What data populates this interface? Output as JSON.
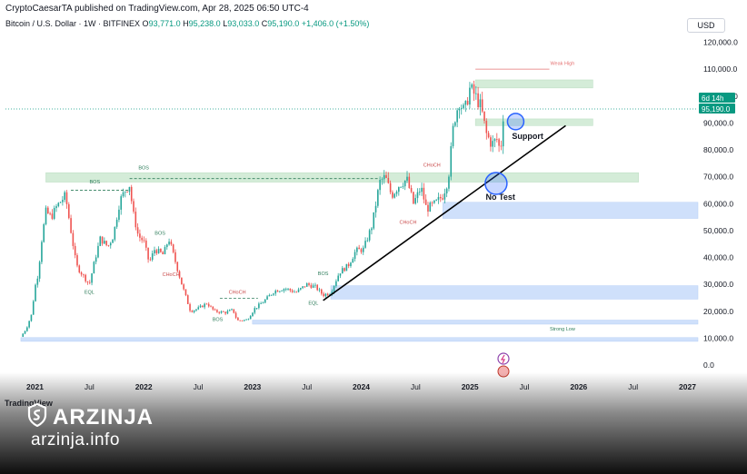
{
  "header": {
    "attribution": "CryptoCaesarTA published on TradingView.com, Apr 28, 2025 06:50 UTC-4",
    "symbol_line": "Bitcoin / U.S. Dollar · 1W · BITFINEX",
    "open_label": "O",
    "open_value": "93,771.0",
    "high_label": "H",
    "high_value": "95,238.0",
    "low_label": "L",
    "low_value": "93,033.0",
    "close_label": "C",
    "close_value": "95,190.0",
    "change": "+1,406.0 (+1.50%)",
    "currency_button": "USD"
  },
  "footer": {
    "tv_logo": "TradingView",
    "brand": "ARZINJA",
    "site": "arzinja.info"
  },
  "colors": {
    "up": "#26a69a",
    "down": "#ef5350",
    "trendline": "#000000",
    "supply_zone": "#d4ecd8",
    "demand_zone": "#cfe0fb",
    "circle": "#2962ff",
    "price_tag": "#089981",
    "weak_high": "#e57373"
  },
  "chart_data": {
    "type": "candlestick",
    "symbol": "Bitcoin / U.S. Dollar",
    "interval": "1W",
    "exchange": "BITFINEX",
    "ylim": [
      0,
      125000
    ],
    "y_ticks": [
      0,
      10000,
      20000,
      30000,
      40000,
      50000,
      60000,
      70000,
      80000,
      90000,
      100000,
      110000,
      120000
    ],
    "y_tick_labels": [
      "0.0",
      "10,000.0",
      "20,000.0",
      "30,000.0",
      "40,000.0",
      "50,000.0",
      "60,000.0",
      "70,000.0",
      "80,000.0",
      "90,000.0",
      "100,000.0",
      "110,000.0",
      "120,000.0"
    ],
    "x_ticks": [
      2021.0,
      2021.5,
      2022.0,
      2022.5,
      2023.0,
      2023.5,
      2024.0,
      2024.5,
      2025.0,
      2025.5,
      2026.0,
      2026.5,
      2027.0
    ],
    "x_tick_labels": [
      "2021",
      "Jul",
      "2022",
      "Jul",
      "2023",
      "Jul",
      "2024",
      "Jul",
      "2025",
      "Jul",
      "2026",
      "Jul",
      "2027"
    ],
    "xlim": [
      2020.87,
      2027.1
    ],
    "current_price": 95190,
    "current_price_label": "95,190.0",
    "countdown_label": "6d 14h",
    "price_path": [
      [
        2020.87,
        10500
      ],
      [
        2020.92,
        13500
      ],
      [
        2020.97,
        19000
      ],
      [
        2021.0,
        29000
      ],
      [
        2021.03,
        34000
      ],
      [
        2021.06,
        46000
      ],
      [
        2021.1,
        57000
      ],
      [
        2021.15,
        55000
      ],
      [
        2021.2,
        59000
      ],
      [
        2021.28,
        63000
      ],
      [
        2021.33,
        50000
      ],
      [
        2021.38,
        37000
      ],
      [
        2021.43,
        34000
      ],
      [
        2021.5,
        30000
      ],
      [
        2021.55,
        39000
      ],
      [
        2021.6,
        47000
      ],
      [
        2021.67,
        44000
      ],
      [
        2021.72,
        48000
      ],
      [
        2021.78,
        61000
      ],
      [
        2021.83,
        65000
      ],
      [
        2021.87,
        67000
      ],
      [
        2021.9,
        57000
      ],
      [
        2021.95,
        48000
      ],
      [
        2022.0,
        46000
      ],
      [
        2022.05,
        38000
      ],
      [
        2022.1,
        43000
      ],
      [
        2022.18,
        41000
      ],
      [
        2022.23,
        47000
      ],
      [
        2022.28,
        40000
      ],
      [
        2022.35,
        30000
      ],
      [
        2022.43,
        20000
      ],
      [
        2022.5,
        21000
      ],
      [
        2022.58,
        23000
      ],
      [
        2022.65,
        20000
      ],
      [
        2022.75,
        19500
      ],
      [
        2022.82,
        20500
      ],
      [
        2022.86,
        16500
      ],
      [
        2022.95,
        16800
      ],
      [
        2023.02,
        21000
      ],
      [
        2023.1,
        23500
      ],
      [
        2023.2,
        27500
      ],
      [
        2023.3,
        28500
      ],
      [
        2023.4,
        27000
      ],
      [
        2023.5,
        30000
      ],
      [
        2023.58,
        29000
      ],
      [
        2023.65,
        26000
      ],
      [
        2023.72,
        27000
      ],
      [
        2023.8,
        34500
      ],
      [
        2023.88,
        37000
      ],
      [
        2023.95,
        42500
      ],
      [
        2024.02,
        43000
      ],
      [
        2024.1,
        52000
      ],
      [
        2024.17,
        68000
      ],
      [
        2024.22,
        70000
      ],
      [
        2024.28,
        63000
      ],
      [
        2024.35,
        67000
      ],
      [
        2024.42,
        69000
      ],
      [
        2024.48,
        60000
      ],
      [
        2024.55,
        66000
      ],
      [
        2024.6,
        58000
      ],
      [
        2024.68,
        60000
      ],
      [
        2024.75,
        63000
      ],
      [
        2024.8,
        69000
      ],
      [
        2024.85,
        90000
      ],
      [
        2024.9,
        98000
      ],
      [
        2024.95,
        94000
      ],
      [
        2025.0,
        103000
      ],
      [
        2025.05,
        100000
      ],
      [
        2025.1,
        96000
      ],
      [
        2025.15,
        86000
      ],
      [
        2025.2,
        82000
      ],
      [
        2025.25,
        84000
      ],
      [
        2025.28,
        79000
      ],
      [
        2025.31,
        95190
      ]
    ],
    "zones": [
      {
        "kind": "supply",
        "x0": 2021.1,
        "x1": 2026.55,
        "y0": 68000,
        "y1": 71500
      },
      {
        "kind": "supply",
        "x0": 2025.05,
        "x1": 2026.13,
        "y0": 103000,
        "y1": 106000
      },
      {
        "kind": "supply",
        "x0": 2025.05,
        "x1": 2026.13,
        "y0": 89000,
        "y1": 91500
      },
      {
        "kind": "demand",
        "x0": 2024.75,
        "x1": 2027.1,
        "y0": 54500,
        "y1": 60500
      },
      {
        "kind": "demand",
        "x0": 2023.72,
        "x1": 2027.1,
        "y0": 24500,
        "y1": 29500
      },
      {
        "kind": "demand",
        "x0": 2023.0,
        "x1": 2027.1,
        "y0": 15200,
        "y1": 16700
      },
      {
        "kind": "demand",
        "x0": 2020.87,
        "x1": 2027.1,
        "y0": 8800,
        "y1": 10200
      }
    ],
    "trendline": {
      "x0": 2023.65,
      "y0": 24000,
      "x1": 2025.88,
      "y1": 89000
    },
    "annotations": [
      {
        "text": "BOS",
        "x": 2022.0,
        "y": 72800,
        "kind": "bos",
        "x0": 2021.87,
        "x1": 2024.17,
        "line_y": 69300
      },
      {
        "text": "BOS",
        "x": 2021.55,
        "y": 67500,
        "kind": "bos",
        "x0": 2021.33,
        "x1": 2021.87,
        "line_y": 65000
      },
      {
        "text": "EQL",
        "x": 2021.5,
        "y": 26500,
        "kind": "eql"
      },
      {
        "text": "BOS",
        "x": 2022.15,
        "y": 48500,
        "kind": "bos"
      },
      {
        "text": "CHoCH",
        "x": 2022.25,
        "y": 33000,
        "kind": "choch"
      },
      {
        "text": "CHoCH",
        "x": 2022.86,
        "y": 26500,
        "kind": "choch",
        "x0": 2022.7,
        "x1": 2023.05,
        "line_y": 24800
      },
      {
        "text": "BOS",
        "x": 2022.68,
        "y": 16300,
        "kind": "bos"
      },
      {
        "text": "BOS",
        "x": 2023.65,
        "y": 33500,
        "kind": "bos"
      },
      {
        "text": "EQL",
        "x": 2023.56,
        "y": 22500,
        "kind": "eql"
      },
      {
        "text": "CHoCH",
        "x": 2024.65,
        "y": 73800,
        "kind": "choch"
      },
      {
        "text": "CHoCH",
        "x": 2024.43,
        "y": 52500,
        "kind": "choch"
      },
      {
        "text": "Weak High",
        "x": 2025.85,
        "y": 111500,
        "kind": "weak_high",
        "x0": 2025.05,
        "x1": 2025.73,
        "line_y": 110000
      },
      {
        "text": "Strong Low",
        "x": 2025.85,
        "y": 12800,
        "kind": "strong_low"
      },
      {
        "text": "Support",
        "x": 2025.53,
        "y": 84000,
        "kind": "label"
      },
      {
        "text": "No Test",
        "x": 2025.28,
        "y": 61500,
        "kind": "label"
      }
    ],
    "circles": [
      {
        "name": "support-circle",
        "x": 2025.42,
        "y": 90500,
        "r": 9
      },
      {
        "name": "no-test-circle",
        "x": 2025.24,
        "y": 67500,
        "r": 12
      }
    ]
  }
}
